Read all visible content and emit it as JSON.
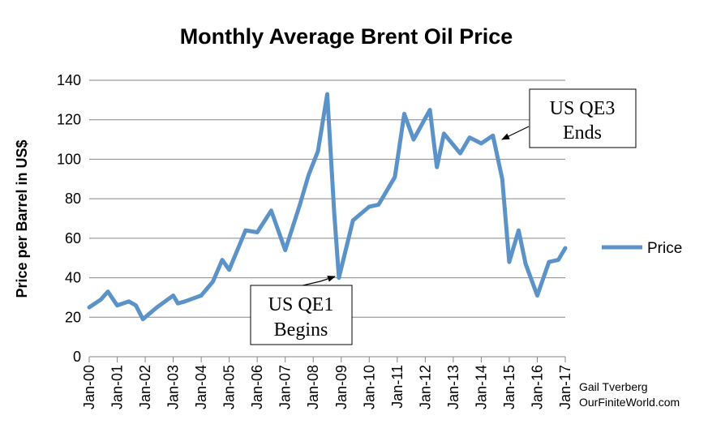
{
  "chart_data": {
    "type": "line",
    "title": "Monthly Average Brent Oil Price",
    "xlabel": "",
    "ylabel": "Price per Barrel in US$",
    "ylim": [
      0,
      140
    ],
    "yticks": [
      0,
      20,
      40,
      60,
      80,
      100,
      120,
      140
    ],
    "grid": "horizontal",
    "legend_position": "right",
    "x_tick_labels": [
      "Jan-00",
      "Jan-01",
      "Jan-02",
      "Jan-03",
      "Jan-04",
      "Jan-05",
      "Jan-06",
      "Jan-07",
      "Jan-08",
      "Jan-09",
      "Jan-10",
      "Jan-11",
      "Jan-12",
      "Jan-13",
      "Jan-14",
      "Jan-15",
      "Jan-16",
      "Jan-17"
    ],
    "series": [
      {
        "name": "Price",
        "color": "#5b93c9",
        "x": [
          "2000-01",
          "2000-06",
          "2000-09",
          "2001-01",
          "2001-06",
          "2001-09",
          "2001-12",
          "2002-06",
          "2003-01",
          "2003-03",
          "2003-06",
          "2004-01",
          "2004-06",
          "2004-10",
          "2005-01",
          "2005-08",
          "2006-01",
          "2006-07",
          "2007-01",
          "2007-07",
          "2007-11",
          "2008-03",
          "2008-07",
          "2008-10",
          "2008-12",
          "2009-06",
          "2010-01",
          "2010-05",
          "2010-12",
          "2011-04",
          "2011-08",
          "2012-03",
          "2012-06",
          "2012-09",
          "2013-04",
          "2013-08",
          "2014-01",
          "2014-06",
          "2014-10",
          "2015-01",
          "2015-05",
          "2015-08",
          "2016-01",
          "2016-06",
          "2016-10",
          "2017-01"
        ],
        "values": [
          25,
          29,
          33,
          26,
          28,
          26,
          19,
          25,
          31,
          27,
          28,
          31,
          38,
          49,
          44,
          64,
          63,
          74,
          54,
          76,
          92,
          104,
          133,
          73,
          40,
          69,
          76,
          77,
          91,
          123,
          110,
          125,
          96,
          113,
          103,
          111,
          108,
          112,
          90,
          48,
          64,
          47,
          31,
          48,
          49,
          55
        ]
      }
    ],
    "annotations": [
      {
        "lines": [
          "US QE1",
          "Begins"
        ],
        "points_to": "2008-12"
      },
      {
        "lines": [
          "US QE3",
          "Ends"
        ],
        "points_to": "2014-10"
      }
    ]
  },
  "credit": {
    "author": "Gail Tverberg",
    "site": "OurFiniteWorld.com"
  }
}
